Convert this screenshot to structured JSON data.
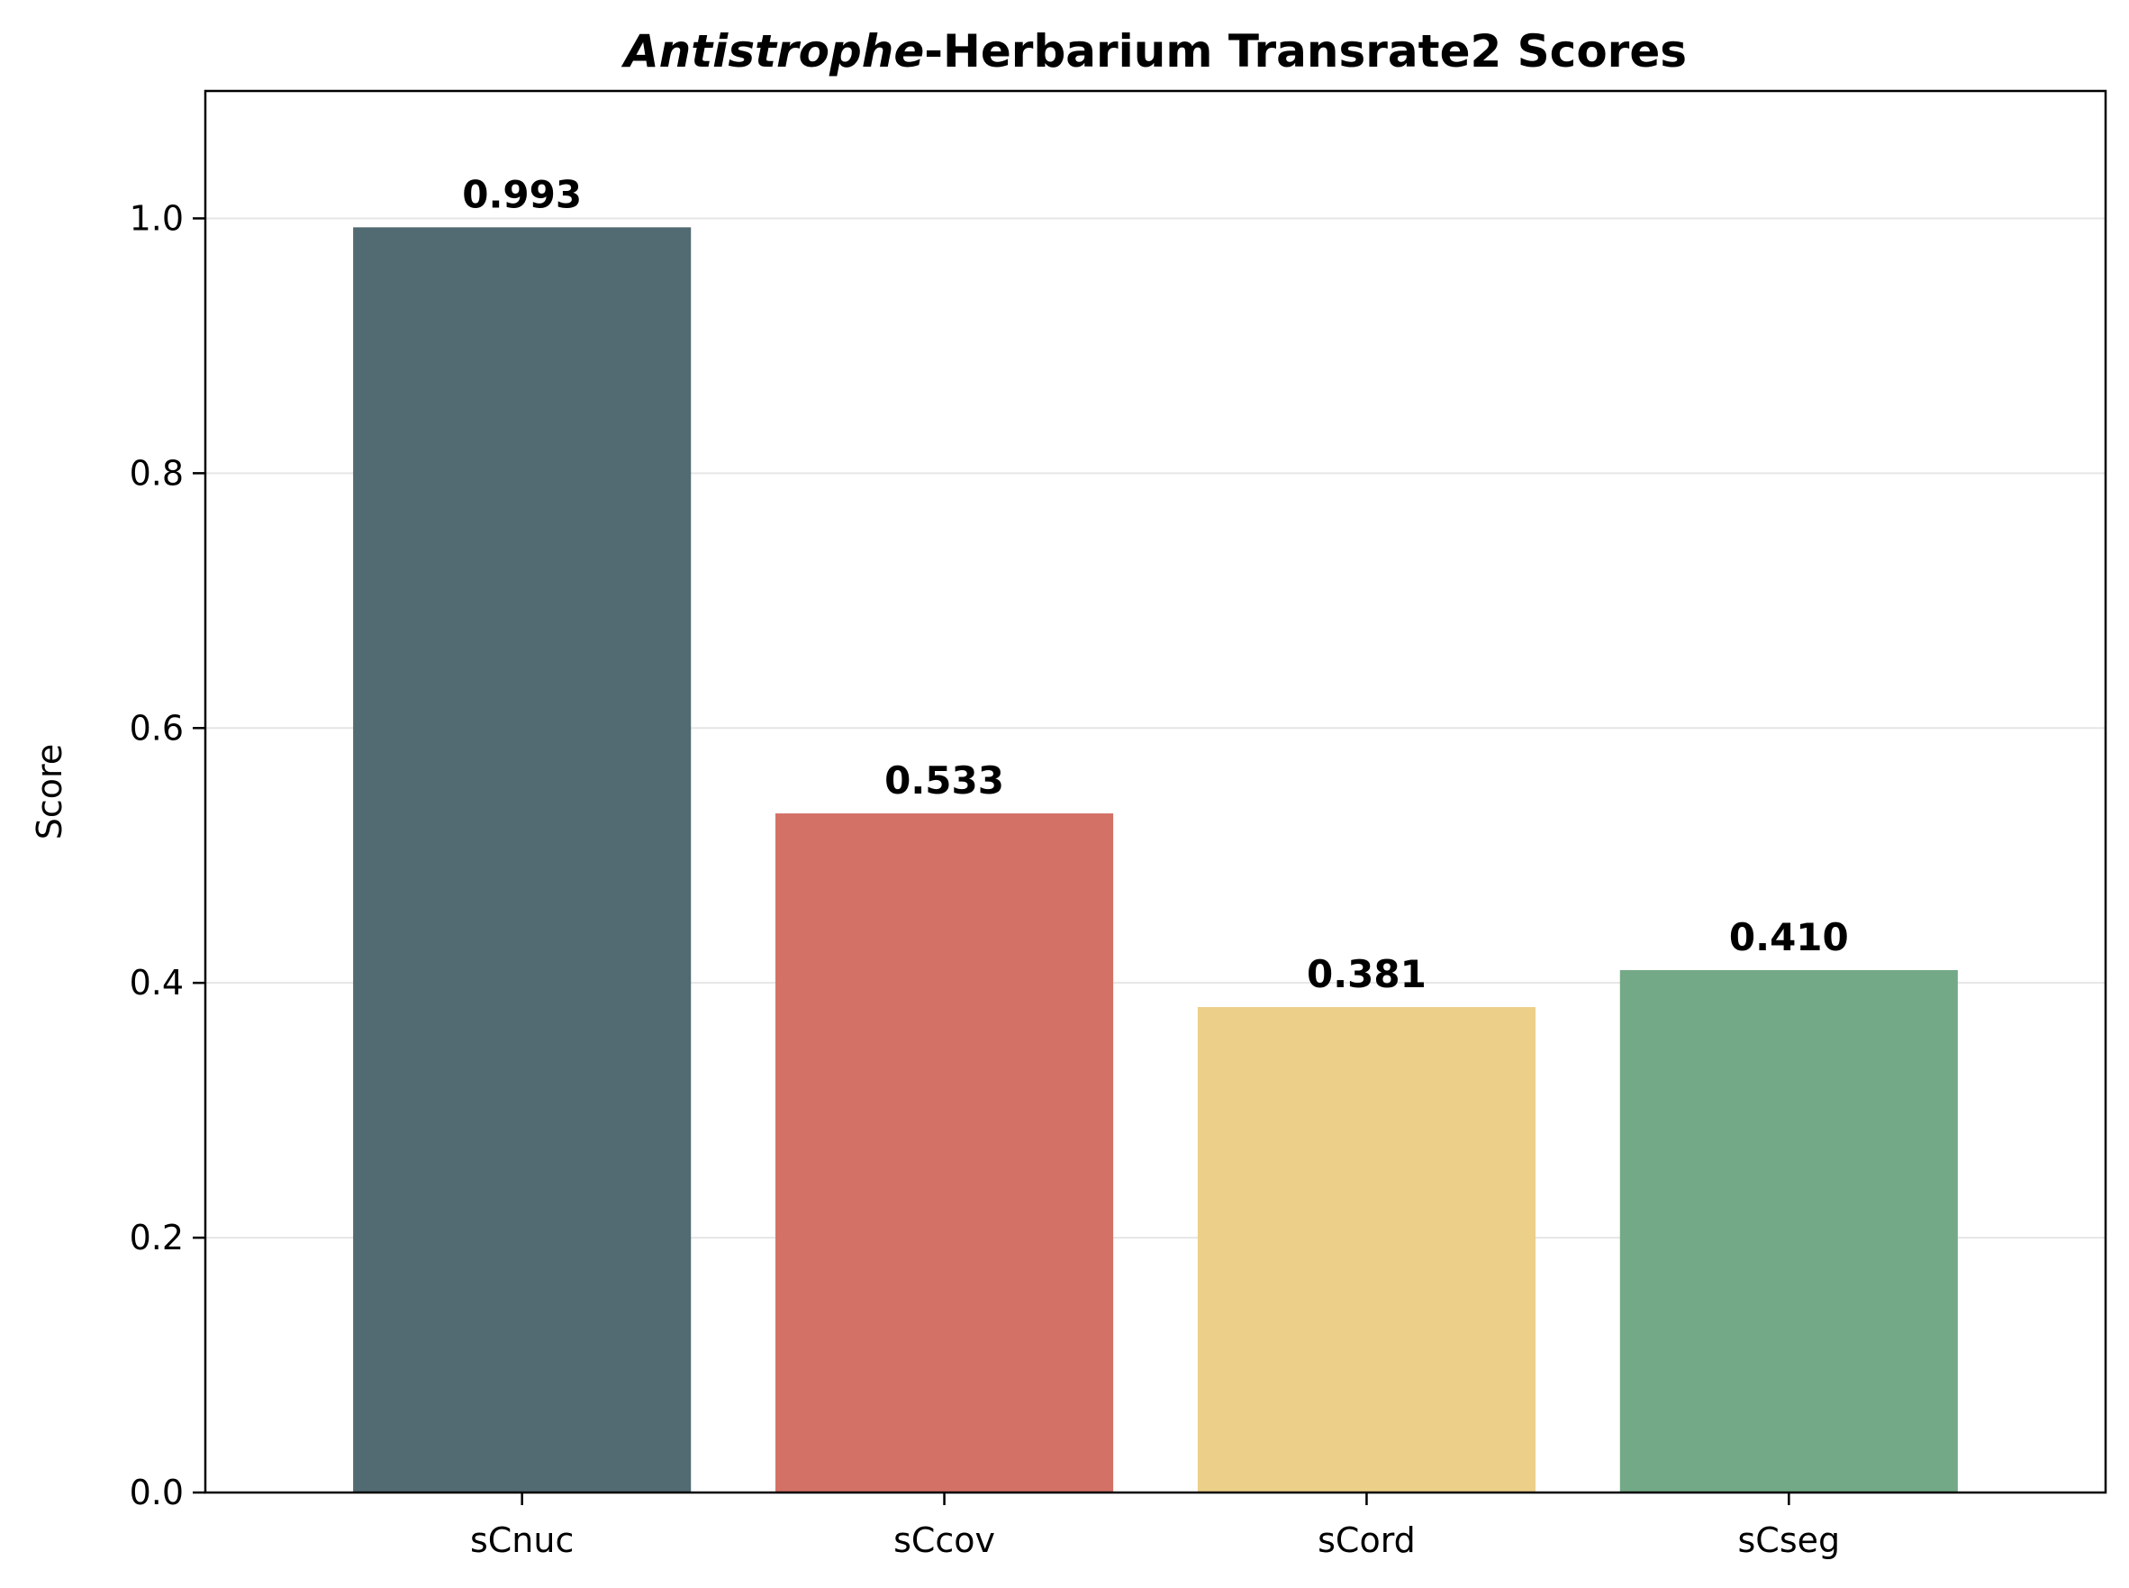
{
  "chart_data": {
    "type": "bar",
    "title_italic": "Antistrophe",
    "title_rest": "-Herbarium Transrate2 Scores",
    "xlabel": "",
    "ylabel": "Score",
    "categories": [
      "sCnuc",
      "sCcov",
      "sCord",
      "sCseg"
    ],
    "values": [
      0.993,
      0.533,
      0.381,
      0.41
    ],
    "value_labels": [
      "0.993",
      "0.533",
      "0.381",
      "0.410"
    ],
    "colors": [
      "#526a72",
      "#d37167",
      "#eccf89",
      "#73a986"
    ],
    "ylim": [
      0,
      1.1
    ],
    "yticks": [
      0.0,
      0.2,
      0.4,
      0.6,
      0.8,
      1.0
    ],
    "ytick_labels": [
      "0.0",
      "0.2",
      "0.4",
      "0.6",
      "0.8",
      "1.0"
    ],
    "grid": "horizontal",
    "grid_color": "#e6e6e6",
    "legend": "none"
  }
}
